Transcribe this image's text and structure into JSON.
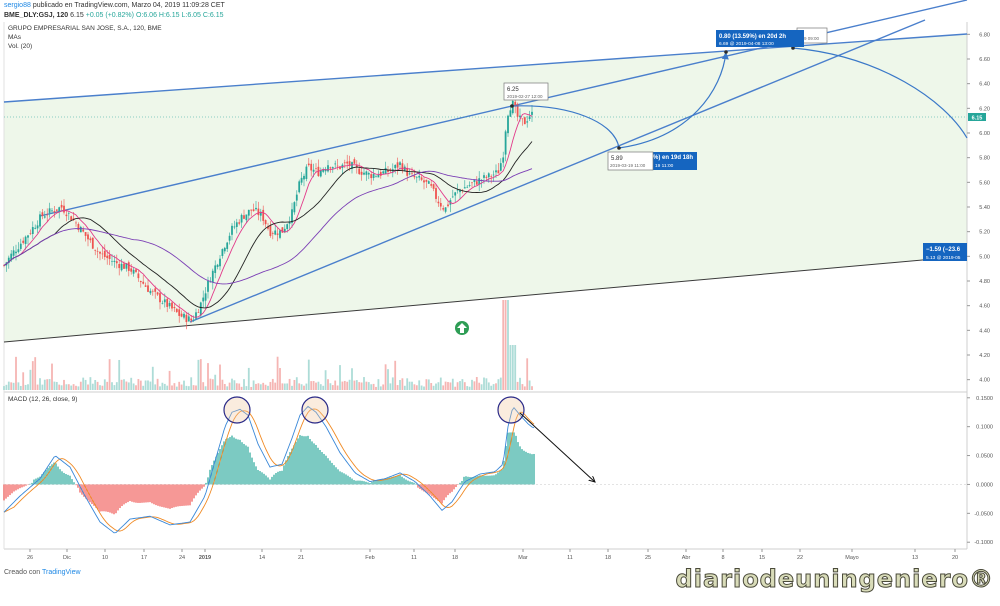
{
  "header": {
    "author": "sergio88",
    "published": "publicado en TradingView.com, Marzo 04, 2019 11:09:28 CET",
    "symbol": "BME_DLY:GSJ, 120",
    "last": "6.15",
    "change": "+0.05 (+0.82%)",
    "ohlc": "O:6.06 H:6.15 L:6.05 C:6.15"
  },
  "legend": {
    "name": "GRUPO EMPRESARIAL SAN JOSE, S.A., 120, BME",
    "mas": "MAs",
    "vol": "Vol. (20)",
    "macd": "MACD (12, 26, close, 9)"
  },
  "footer": {
    "created": "Creado con",
    "brand": "TradingView"
  },
  "watermark": "diariodeuningeniero®",
  "colors": {
    "up": "#26a69a",
    "down": "#ef5350",
    "trend": "#4a7fcc",
    "ma_fast": "#e23a8a",
    "ma_mid": "#222222",
    "ma_slow": "#7b3fb5",
    "macd": "#3a88d8",
    "signal": "#f08a24",
    "zone": "#eef7ea",
    "label_bg": "#1565c0"
  },
  "chart_data": {
    "type": "candlestick",
    "price_axis": {
      "min": 3.9,
      "max": 6.9,
      "ticks": [
        "6.80",
        "6.60",
        "6.40",
        "6.20",
        "6.00",
        "5.80",
        "5.60",
        "5.40",
        "5.20",
        "5.00",
        "4.80",
        "4.60",
        "4.40",
        "4.20",
        "4.00"
      ]
    },
    "macd_axis": {
      "min": -0.11,
      "max": 0.16,
      "ticks": [
        "0.1500",
        "0.1000",
        "0.0500",
        "0.0000",
        "-0.0500",
        "-0.1000"
      ]
    },
    "time_ticks": [
      "26",
      "Dic",
      "10",
      "17",
      "24",
      "2019",
      "14",
      "21",
      "Feb",
      "11",
      "18",
      "Mar",
      "11",
      "18",
      "25",
      "Abr",
      "8",
      "15",
      "22",
      "Mayo",
      "13",
      "20"
    ],
    "last_price": "6.15",
    "path_keys": [
      [
        0,
        4.88
      ],
      [
        12,
        5.02
      ],
      [
        20,
        5.1
      ],
      [
        30,
        5.2
      ],
      [
        42,
        5.33
      ],
      [
        55,
        5.38
      ],
      [
        62,
        5.4
      ],
      [
        75,
        5.28
      ],
      [
        90,
        5.12
      ],
      [
        100,
        5.02
      ],
      [
        115,
        4.95
      ],
      [
        130,
        4.9
      ],
      [
        150,
        4.72
      ],
      [
        165,
        4.62
      ],
      [
        180,
        4.52
      ],
      [
        192,
        4.48
      ],
      [
        200,
        4.6
      ],
      [
        210,
        4.82
      ],
      [
        222,
        5.05
      ],
      [
        232,
        5.22
      ],
      [
        242,
        5.32
      ],
      [
        252,
        5.38
      ],
      [
        262,
        5.33
      ],
      [
        270,
        5.2
      ],
      [
        282,
        5.2
      ],
      [
        292,
        5.35
      ],
      [
        300,
        5.6
      ],
      [
        308,
        5.72
      ],
      [
        318,
        5.68
      ],
      [
        328,
        5.75
      ],
      [
        338,
        5.72
      ],
      [
        348,
        5.75
      ],
      [
        358,
        5.7
      ],
      [
        370,
        5.66
      ],
      [
        380,
        5.67
      ],
      [
        392,
        5.7
      ],
      [
        400,
        5.75
      ],
      [
        410,
        5.65
      ],
      [
        420,
        5.62
      ],
      [
        430,
        5.57
      ],
      [
        438,
        5.45
      ],
      [
        445,
        5.38
      ],
      [
        452,
        5.48
      ],
      [
        460,
        5.54
      ],
      [
        470,
        5.58
      ],
      [
        480,
        5.62
      ],
      [
        490,
        5.65
      ],
      [
        498,
        5.68
      ],
      [
        503,
        5.82
      ],
      [
        507,
        6.15
      ],
      [
        512,
        6.25
      ],
      [
        518,
        6.12
      ],
      [
        524,
        6.08
      ],
      [
        530,
        6.15
      ]
    ],
    "macd_keys": [
      [
        0,
        -0.055
      ],
      [
        20,
        -0.02
      ],
      [
        40,
        0.01
      ],
      [
        55,
        0.05
      ],
      [
        70,
        0.03
      ],
      [
        85,
        -0.02
      ],
      [
        100,
        -0.065
      ],
      [
        115,
        -0.085
      ],
      [
        130,
        -0.06
      ],
      [
        150,
        -0.055
      ],
      [
        170,
        -0.07
      ],
      [
        190,
        -0.065
      ],
      [
        205,
        -0.02
      ],
      [
        215,
        0.04
      ],
      [
        225,
        0.1
      ],
      [
        232,
        0.125
      ],
      [
        240,
        0.13
      ],
      [
        248,
        0.12
      ],
      [
        258,
        0.07
      ],
      [
        270,
        0.03
      ],
      [
        282,
        0.035
      ],
      [
        292,
        0.08
      ],
      [
        300,
        0.12
      ],
      [
        308,
        0.135
      ],
      [
        316,
        0.125
      ],
      [
        326,
        0.1
      ],
      [
        340,
        0.055
      ],
      [
        355,
        0.02
      ],
      [
        370,
        0.005
      ],
      [
        385,
        0.01
      ],
      [
        400,
        0.02
      ],
      [
        415,
        0.005
      ],
      [
        430,
        -0.02
      ],
      [
        442,
        -0.045
      ],
      [
        452,
        -0.03
      ],
      [
        465,
        0.005
      ],
      [
        480,
        0.018
      ],
      [
        495,
        0.022
      ],
      [
        503,
        0.035
      ],
      [
        508,
        0.1
      ],
      [
        513,
        0.135
      ],
      [
        520,
        0.12
      ],
      [
        528,
        0.105
      ],
      [
        533,
        0.098
      ]
    ],
    "annotations": {
      "high": {
        "price": "6.25",
        "date": "2019-02-27 12:00"
      },
      "low": {
        "price": "5.89",
        "date": "2019-03-19 11:00"
      },
      "low_tag": "%) en 19d 18h",
      "low_tag_date": "19 11:00",
      "target": {
        "title": "0.80 (13.59%) en 20d 2h",
        "sub": "6.69 @ 2019-04-08 13:00",
        "tag": "-19 09:00"
      },
      "right": {
        "title": "−1.59 (−23.6",
        "sub": "5.13 @ 2019-05"
      }
    }
  }
}
